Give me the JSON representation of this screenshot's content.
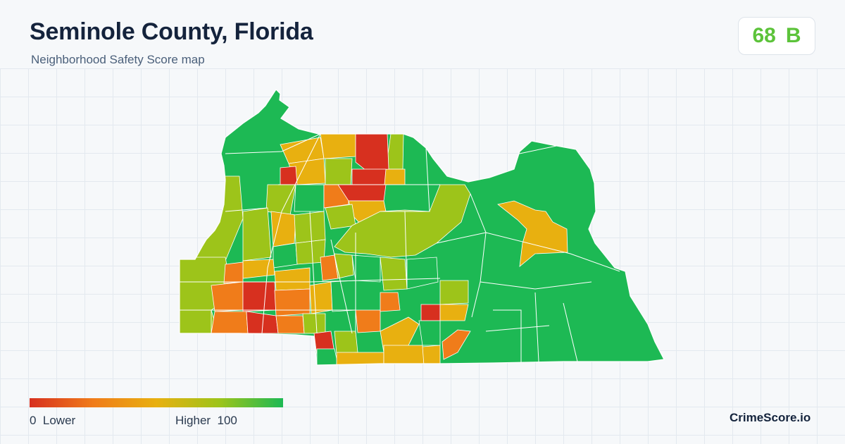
{
  "header": {
    "title": "Seminole County, Florida",
    "subtitle": "Neighborhood Safety Score map"
  },
  "score": {
    "value": "68",
    "grade": "B",
    "color": "#5cc33a"
  },
  "legend": {
    "low_label": "0  Lower",
    "high_label": "Higher  100",
    "colors": [
      "#d7301f",
      "#f07c1a",
      "#e8b010",
      "#9dc41a",
      "#1db954"
    ]
  },
  "map": {
    "region_colors": {
      "very_low": "#d7301f",
      "low": "#f07c1a",
      "mid_low": "#e8b010",
      "mid_high": "#9dc41a",
      "high": "#1db954",
      "border": "#ffffff"
    }
  },
  "brand": {
    "name": "CrimeScore.io"
  }
}
